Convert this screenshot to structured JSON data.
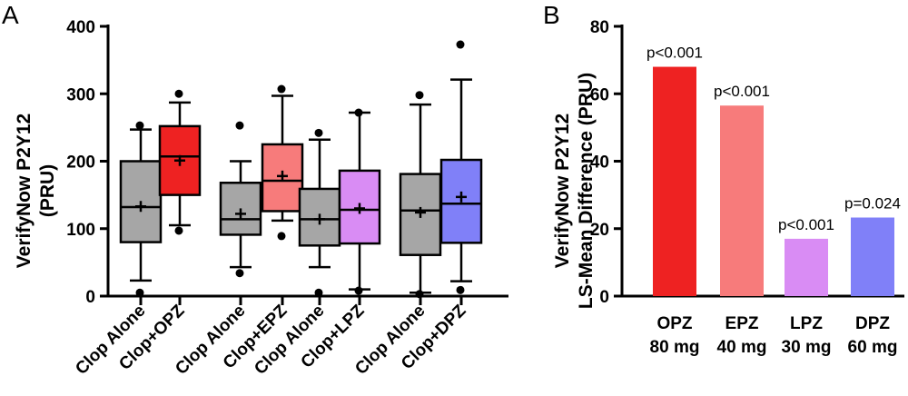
{
  "panels": {
    "a_label": "A",
    "b_label": "B"
  },
  "chart_data": [
    {
      "type": "box",
      "panel": "A",
      "ylabel_line1": "VerifyNow P2Y12",
      "ylabel_line2": "(PRU)",
      "ylim": [
        0,
        400
      ],
      "yticks": [
        0,
        100,
        200,
        300,
        400
      ],
      "categories": [
        "Clop Alone",
        "Clop+OPZ",
        "Clop Alone",
        "Clop+EPZ",
        "Clop Alone",
        "Clop+LPZ",
        "Clop Alone",
        "Clop+DPZ"
      ],
      "colors": [
        "#a6a6a6",
        "#ee2222",
        "#a6a6a6",
        "#f77b7b",
        "#a6a6a6",
        "#d98cf4",
        "#a6a6a6",
        "#8080f8"
      ],
      "boxes": [
        {
          "q1": 80,
          "median": 132,
          "q3": 200,
          "mean": 133,
          "whisker_low": 23,
          "whisker_high": 247,
          "outliers": [
            5,
            253
          ]
        },
        {
          "q1": 150,
          "median": 207,
          "q3": 252,
          "mean": 201,
          "whisker_low": 105,
          "whisker_high": 287,
          "outliers": [
            97,
            300
          ]
        },
        {
          "q1": 91,
          "median": 114,
          "q3": 168,
          "mean": 122,
          "whisker_low": 43,
          "whisker_high": 200,
          "outliers": [
            34,
            253
          ]
        },
        {
          "q1": 126,
          "median": 171,
          "q3": 225,
          "mean": 178,
          "whisker_low": 112,
          "whisker_high": 297,
          "outliers": [
            89,
            307
          ]
        },
        {
          "q1": 75,
          "median": 114,
          "q3": 159,
          "mean": 114,
          "whisker_low": 43,
          "whisker_high": 232,
          "outliers": [
            5,
            242
          ]
        },
        {
          "q1": 78,
          "median": 128,
          "q3": 186,
          "mean": 130,
          "whisker_low": 10,
          "whisker_high": 272,
          "outliers": [
            8,
            272
          ]
        },
        {
          "q1": 61,
          "median": 127,
          "q3": 181,
          "mean": 124,
          "whisker_low": 5,
          "whisker_high": 284,
          "outliers": [
            3,
            298
          ]
        },
        {
          "q1": 79,
          "median": 137,
          "q3": 202,
          "mean": 147,
          "whisker_low": 22,
          "whisker_high": 321,
          "outliers": [
            9,
            373
          ]
        }
      ]
    },
    {
      "type": "bar",
      "panel": "B",
      "ylabel_line1": "VerifyNow P2Y12",
      "ylabel_line2": "LS-Mean Difference (PRU)",
      "ylim": [
        0,
        80
      ],
      "yticks": [
        0,
        20,
        40,
        60,
        80
      ],
      "categories": [
        {
          "line1": "OPZ",
          "line2": "80 mg"
        },
        {
          "line1": "EPZ",
          "line2": "40 mg"
        },
        {
          "line1": "LPZ",
          "line2": "30 mg"
        },
        {
          "line1": "DPZ",
          "line2": "60 mg"
        }
      ],
      "values": [
        68,
        56.5,
        17,
        23.3
      ],
      "colors": [
        "#ee2222",
        "#f77b7b",
        "#d98cf4",
        "#8080f8"
      ],
      "annotations": [
        "p<0.001",
        "p<0.001",
        "p<0.001",
        "p=0.024"
      ]
    }
  ]
}
